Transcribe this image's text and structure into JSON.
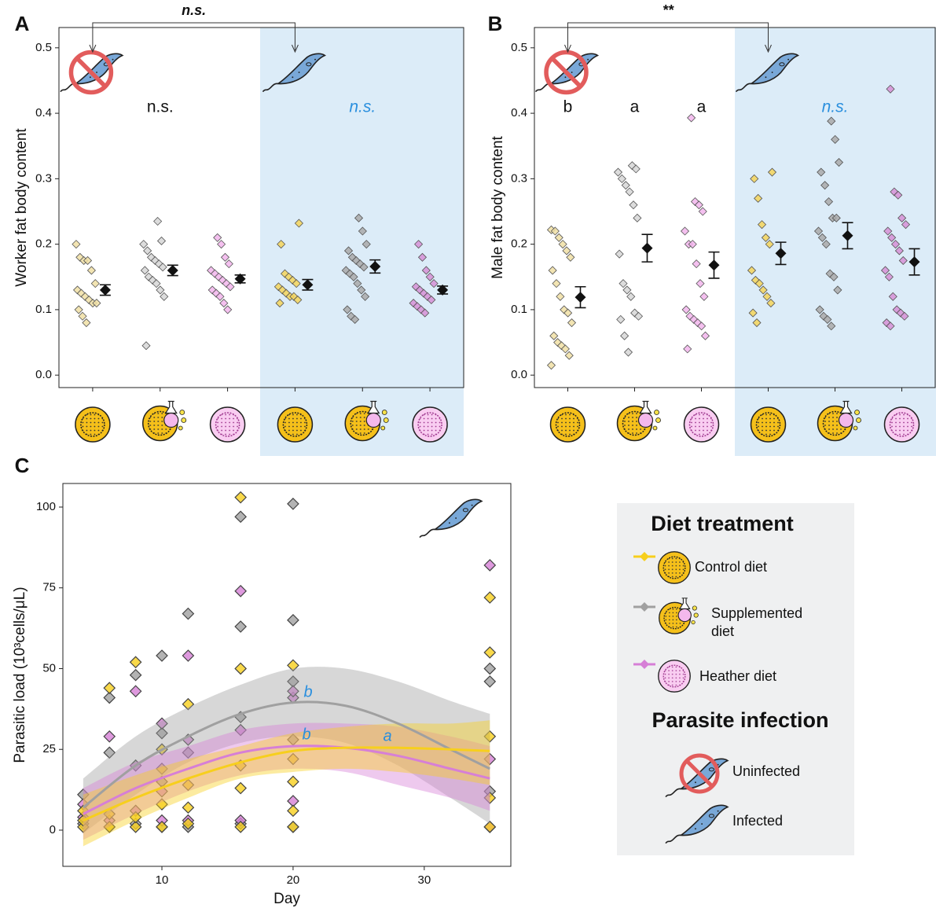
{
  "chart_data": [
    {
      "type": "strip",
      "panel_label": "A",
      "ylabel": "Worker fat body content",
      "comparison": "n.s.",
      "categories": [
        null,
        null,
        null,
        null,
        null,
        null
      ],
      "ylim": [
        -0.019,
        0.531
      ],
      "yticks": [
        {
          "value": 0,
          "label": "0.0"
        },
        0.1,
        0.2,
        0.3,
        0.4,
        0.5
      ],
      "groups": [
        {
          "color": "#f0dfa5",
          "mean": 0.13,
          "error": 0.008,
          "values": [
            0.2,
            0.18,
            0.175,
            0.175,
            0.16,
            0.14,
            0.13,
            0.125,
            0.12,
            0.115,
            0.11,
            0.11,
            0.1,
            0.09,
            0.08
          ]
        },
        {
          "color": "#d6d6d6",
          "mean": 0.16,
          "error": 0.008,
          "values": [
            0.235,
            0.205,
            0.2,
            0.19,
            0.18,
            0.175,
            0.17,
            0.165,
            0.16,
            0.15,
            0.145,
            0.14,
            0.13,
            0.12,
            0.045
          ]
        },
        {
          "color": "#f2b5ec",
          "mean": 0.147,
          "error": 0.006,
          "values": [
            0.21,
            0.2,
            0.18,
            0.17,
            0.16,
            0.155,
            0.15,
            0.145,
            0.14,
            0.135,
            0.13,
            0.125,
            0.12,
            0.11,
            0.1
          ]
        },
        {
          "color": "#f5d55a",
          "mean": 0.138,
          "error": 0.008,
          "values": [
            0.232,
            0.2,
            0.155,
            0.15,
            0.145,
            0.14,
            0.135,
            0.13,
            0.125,
            0.12,
            0.12,
            0.115,
            0.11
          ]
        },
        {
          "color": "#a9a9a9",
          "mean": 0.166,
          "error": 0.01,
          "values": [
            0.24,
            0.22,
            0.2,
            0.19,
            0.18,
            0.175,
            0.17,
            0.165,
            0.16,
            0.155,
            0.15,
            0.14,
            0.13,
            0.12,
            0.1,
            0.09,
            0.085
          ]
        },
        {
          "color": "#d690d6",
          "mean": 0.13,
          "error": 0.006,
          "values": [
            0.2,
            0.18,
            0.16,
            0.15,
            0.14,
            0.135,
            0.13,
            0.125,
            0.12,
            0.115,
            0.11,
            0.105,
            0.1,
            0.095
          ]
        }
      ],
      "annotations": [
        {
          "text": "n.s.",
          "color": "#111111",
          "italic": false
        },
        {
          "text": "n.s.",
          "color": "#2a8fde",
          "italic": true
        }
      ]
    },
    {
      "type": "strip",
      "panel_label": "B",
      "ylabel": "Male fat body content",
      "comparison": "**",
      "categories": [
        null,
        null,
        null,
        null,
        null,
        null
      ],
      "ylim": [
        -0.019,
        0.531
      ],
      "yticks": [
        {
          "value": 0,
          "label": "0.0"
        },
        0.1,
        0.2,
        0.3,
        0.4,
        0.5
      ],
      "groups": [
        {
          "color": "#f0dfa5",
          "mean": 0.119,
          "error": 0.016,
          "values": [
            0.222,
            0.22,
            0.21,
            0.2,
            0.19,
            0.18,
            0.16,
            0.14,
            0.12,
            0.1,
            0.095,
            0.08,
            0.06,
            0.05,
            0.045,
            0.04,
            0.03,
            0.015
          ]
        },
        {
          "color": "#d6d6d6",
          "mean": 0.194,
          "error": 0.021,
          "values": [
            0.32,
            0.315,
            0.31,
            0.3,
            0.29,
            0.28,
            0.26,
            0.24,
            0.185,
            0.14,
            0.13,
            0.12,
            0.095,
            0.09,
            0.085,
            0.06,
            0.035
          ]
        },
        {
          "color": "#f2b5ec",
          "mean": 0.168,
          "error": 0.02,
          "values": [
            0.393,
            0.265,
            0.26,
            0.25,
            0.22,
            0.2,
            0.2,
            0.17,
            0.14,
            0.12,
            0.1,
            0.09,
            0.085,
            0.08,
            0.075,
            0.06,
            0.04
          ]
        },
        {
          "color": "#f5d55a",
          "mean": 0.186,
          "error": 0.017,
          "values": [
            0.31,
            0.3,
            0.27,
            0.23,
            0.21,
            0.2,
            0.16,
            0.145,
            0.14,
            0.13,
            0.12,
            0.11,
            0.095,
            0.08
          ]
        },
        {
          "color": "#a9a9a9",
          "mean": 0.213,
          "error": 0.02,
          "values": [
            0.388,
            0.36,
            0.325,
            0.31,
            0.29,
            0.265,
            0.24,
            0.24,
            0.22,
            0.21,
            0.2,
            0.155,
            0.15,
            0.13,
            0.1,
            0.09,
            0.085,
            0.075
          ]
        },
        {
          "color": "#d690d6",
          "mean": 0.173,
          "error": 0.02,
          "values": [
            0.437,
            0.28,
            0.275,
            0.24,
            0.23,
            0.22,
            0.21,
            0.2,
            0.19,
            0.175,
            0.16,
            0.15,
            0.12,
            0.1,
            0.095,
            0.09,
            0.08,
            0.075
          ]
        }
      ],
      "annotations": [
        {
          "text": "b",
          "color": "#111111",
          "italic": false
        },
        {
          "text": "a",
          "color": "#111111",
          "italic": false
        },
        {
          "text": "a",
          "color": "#111111",
          "italic": false
        },
        {
          "text": "n.s.",
          "color": "#2a8fde",
          "italic": true
        }
      ]
    },
    {
      "type": "scatter",
      "panel_label": "C",
      "xlabel": "Day",
      "ylabel": "Parasitic load (10³cells/μL)",
      "legend_title": "Diet treatment",
      "xlim": [
        2.45,
        36.6
      ],
      "ylim": [
        -11.2,
        107.3
      ],
      "xticks": [
        10,
        20,
        30
      ],
      "yticks": [
        0,
        25,
        50,
        75,
        100
      ],
      "series": [
        {
          "name": "Control diet",
          "color": "#f7cf1d",
          "x": [
            4,
            4,
            4,
            6,
            6,
            6,
            8,
            8,
            8,
            10,
            10,
            10,
            10,
            12,
            12,
            12,
            12,
            16,
            16,
            16,
            16,
            16,
            20,
            20,
            20,
            20,
            20,
            35,
            35,
            35,
            35,
            35
          ],
          "values": [
            1,
            3,
            6,
            1,
            5,
            44,
            1,
            4,
            52,
            1,
            8,
            19,
            25,
            2,
            7,
            14,
            39,
            1,
            13,
            20,
            50,
            103,
            1,
            6,
            22,
            51,
            15,
            1,
            10,
            29,
            55,
            72
          ],
          "fit": {
            "x": [
              4,
              8,
              12,
              16,
              20,
              24,
              28,
              32,
              35
            ],
            "values": [
              3,
              10,
              16,
              21,
              24.5,
              25.5,
              25.5,
              25,
              24.5
            ],
            "lower": [
              -5,
              3,
              10,
              16,
              18,
              19,
              18,
              16,
              14
            ],
            "upper": [
              11,
              17,
              22,
              26,
              30,
              32,
              33,
              33,
              34
            ]
          }
        },
        {
          "name": "Supplemented diet",
          "color": "#a0a0a0",
          "x": [
            4,
            4,
            6,
            6,
            6,
            8,
            8,
            8,
            10,
            10,
            10,
            10,
            12,
            12,
            12,
            16,
            16,
            16,
            16,
            20,
            20,
            20,
            20,
            20,
            35,
            35,
            35,
            35
          ],
          "values": [
            2,
            11,
            1,
            24,
            41,
            2,
            20,
            48,
            1,
            15,
            30,
            54,
            1,
            24,
            67,
            2,
            35,
            63,
            97,
            1,
            28,
            46,
            65,
            101,
            1,
            12,
            46,
            50
          ],
          "fit": {
            "x": [
              4,
              8,
              12,
              16,
              20,
              24,
              28,
              32,
              35
            ],
            "values": [
              7,
              20,
              29,
              36,
              39.5,
              38.5,
              33,
              25,
              19
            ],
            "lower": [
              -1,
              11,
              21,
              27,
              29,
              27,
              20,
              10,
              2
            ],
            "upper": [
              16,
              29,
              38,
              45,
              50,
              50,
              46,
              40,
              36
            ]
          }
        },
        {
          "name": "Heather diet",
          "color": "#d67fd6",
          "x": [
            4,
            4,
            6,
            6,
            8,
            8,
            10,
            10,
            10,
            12,
            12,
            12,
            16,
            16,
            16,
            20,
            20,
            20,
            35,
            35,
            35
          ],
          "values": [
            4,
            8,
            3,
            29,
            6,
            43,
            3,
            12,
            33,
            3,
            28,
            54,
            3,
            31,
            74,
            9,
            41,
            43,
            1,
            22,
            82
          ],
          "fit": {
            "x": [
              4,
              8,
              12,
              16,
              20,
              24,
              28,
              32,
              35
            ],
            "values": [
              5,
              13,
              19,
              24,
              26,
              25.5,
              23,
              19,
              16
            ],
            "lower": [
              -3,
              5,
              12,
              17,
              19,
              18,
              14,
              10,
              6
            ],
            "upper": [
              13,
              21,
              26,
              31,
              33,
              33,
              32,
              29,
              26
            ]
          }
        }
      ],
      "annotations": [
        {
          "text": "b",
          "color": "#2a8fde",
          "italic": true
        },
        {
          "text": "b",
          "color": "#2a8fde",
          "italic": true
        },
        {
          "text": "a",
          "color": "#2a8fde",
          "italic": true
        }
      ]
    }
  ],
  "infection_legend": {
    "title": "Parasite infection",
    "items": [
      "Uninfected",
      "Infected"
    ]
  }
}
